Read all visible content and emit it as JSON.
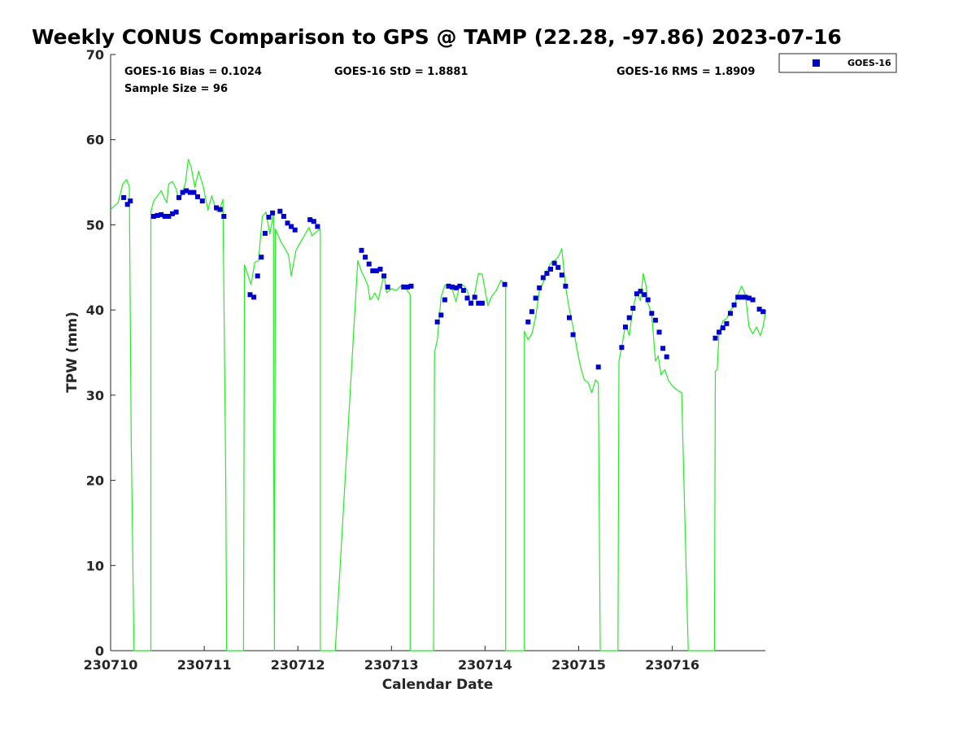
{
  "chart_data": {
    "type": "line",
    "title": "Weekly CONUS Comparison to GPS @ TAMP (22.28, -97.86) 2023-07-16",
    "xlabel": "Calendar Date",
    "ylabel": "TPW (mm)",
    "x_ticks": [
      "230710",
      "230711",
      "230712",
      "230713",
      "230714",
      "230715",
      "230716"
    ],
    "xlim_days": [
      0,
      7
    ],
    "ylim": [
      0,
      70
    ],
    "y_ticks": [
      0,
      10,
      20,
      30,
      40,
      50,
      60,
      70
    ],
    "grid": false,
    "legend_position": "top-right",
    "stats": {
      "bias": "GOES-16 Bias = 0.1024",
      "std": "GOES-16 StD = 1.8881",
      "rms": "GOES-16 RMS = 1.8909",
      "sample": "Sample Size = 96"
    },
    "colors": {
      "gps_line": "#22ee22",
      "goes": "#0000cc"
    },
    "series": [
      {
        "name": "GOES-16",
        "style": "square-markers",
        "x": [
          0.14,
          0.18,
          0.21,
          0.46,
          0.5,
          0.54,
          0.58,
          0.62,
          0.66,
          0.7,
          0.73,
          0.77,
          0.81,
          0.85,
          0.89,
          0.93,
          0.98,
          1.13,
          1.17,
          1.21,
          1.49,
          1.53,
          1.57,
          1.61,
          1.65,
          1.69,
          1.73,
          1.81,
          1.85,
          1.89,
          1.93,
          1.97,
          2.13,
          2.17,
          2.21,
          2.68,
          2.72,
          2.76,
          2.8,
          2.84,
          2.88,
          2.92,
          2.96,
          3.13,
          3.17,
          3.21,
          3.49,
          3.53,
          3.57,
          3.61,
          3.65,
          3.69,
          3.73,
          3.77,
          3.81,
          3.85,
          3.89,
          3.93,
          3.97,
          4.21,
          4.46,
          4.5,
          4.54,
          4.58,
          4.62,
          4.66,
          4.7,
          4.74,
          4.78,
          4.82,
          4.86,
          4.9,
          4.94,
          5.21,
          5.46,
          5.5,
          5.54,
          5.58,
          5.62,
          5.66,
          5.7,
          5.74,
          5.78,
          5.82,
          5.86,
          5.9,
          5.94,
          6.46,
          6.5,
          6.54,
          6.58,
          6.62,
          6.66,
          6.7,
          6.74,
          6.78,
          6.82,
          6.86,
          6.93,
          6.97
        ],
        "y": [
          53.2,
          52.4,
          52.8,
          51.0,
          51.1,
          51.2,
          51.0,
          51.0,
          51.3,
          51.5,
          53.2,
          53.8,
          54.0,
          53.8,
          53.8,
          53.3,
          52.8,
          52.0,
          51.8,
          51.0,
          41.8,
          41.5,
          44.0,
          46.2,
          49.0,
          50.9,
          51.4,
          51.6,
          51.0,
          50.2,
          49.8,
          49.4,
          50.6,
          50.4,
          49.8,
          47.0,
          46.2,
          45.4,
          44.6,
          44.6,
          44.8,
          44.0,
          42.7,
          42.7,
          42.7,
          42.8,
          38.6,
          39.4,
          41.2,
          42.8,
          42.7,
          42.6,
          42.8,
          42.3,
          41.4,
          40.8,
          41.5,
          40.8,
          40.8,
          43.0,
          38.6,
          39.8,
          41.4,
          42.6,
          43.8,
          44.3,
          44.8,
          45.5,
          45.0,
          44.1,
          42.8,
          39.1,
          37.1,
          33.3,
          35.6,
          38.0,
          39.1,
          40.2,
          41.9,
          42.2,
          41.8,
          41.2,
          39.6,
          38.8,
          37.4,
          35.5,
          34.5,
          36.7,
          37.4,
          37.9,
          38.4,
          39.6,
          40.6,
          41.5,
          41.5,
          41.5,
          41.4,
          41.2,
          40.1,
          39.8
        ]
      },
      {
        "style": "line",
        "x": [
          0.0,
          0.08,
          0.13,
          0.17,
          0.2,
          0.22,
          0.25,
          0.25,
          0.43,
          0.43,
          0.46,
          0.5,
          0.54,
          0.58,
          0.6,
          0.62,
          0.66,
          0.7,
          0.73,
          0.76,
          0.8,
          0.83,
          0.86,
          0.9,
          0.94,
          0.99,
          1.04,
          1.08,
          1.13,
          1.16,
          1.2,
          1.23,
          1.24,
          1.24,
          1.42,
          1.43,
          1.5,
          1.54,
          1.58,
          1.62,
          1.66,
          1.7,
          1.74,
          1.74,
          1.75,
          1.76,
          1.82,
          1.9,
          1.93,
          1.98,
          2.12,
          2.15,
          2.2,
          2.24,
          2.24,
          2.4,
          2.64,
          2.68,
          2.72,
          2.75,
          2.77,
          2.8,
          2.82,
          2.86,
          2.92,
          2.95,
          3.0,
          3.05,
          3.12,
          3.2,
          3.2,
          3.45,
          3.46,
          3.49,
          3.53,
          3.57,
          3.61,
          3.65,
          3.69,
          3.73,
          3.77,
          3.81,
          3.85,
          3.89,
          3.93,
          3.97,
          4.03,
          4.07,
          4.12,
          4.17,
          4.22,
          4.22,
          4.42,
          4.42,
          4.46,
          4.5,
          4.54,
          4.58,
          4.62,
          4.66,
          4.7,
          4.74,
          4.78,
          4.82,
          4.86,
          4.9,
          4.94,
          4.98,
          5.02,
          5.06,
          5.1,
          5.14,
          5.18,
          5.21,
          5.23,
          5.24,
          5.42,
          5.43,
          5.46,
          5.5,
          5.54,
          5.58,
          5.62,
          5.66,
          5.69,
          5.72,
          5.74,
          5.78,
          5.82,
          5.85,
          5.88,
          5.92,
          5.96,
          6.0,
          6.04,
          6.08,
          6.1,
          6.17,
          6.45,
          6.46,
          6.48,
          6.5,
          6.54,
          6.58,
          6.62,
          6.66,
          6.7,
          6.74,
          6.78,
          6.82,
          6.86,
          6.9,
          6.94,
          6.97,
          7.0
        ],
        "y": [
          51.8,
          52.6,
          54.8,
          55.3,
          54.5,
          25.0,
          0.0,
          0.0,
          0.0,
          51.5,
          52.8,
          53.4,
          54.0,
          53.0,
          52.6,
          54.8,
          55.1,
          54.2,
          52.9,
          53.5,
          55.0,
          57.7,
          56.8,
          54.4,
          56.3,
          54.5,
          51.7,
          53.4,
          51.6,
          51.6,
          53.0,
          20.0,
          0.0,
          0.0,
          0.0,
          45.3,
          43.0,
          45.6,
          45.8,
          51.0,
          51.5,
          48.9,
          51.4,
          30.0,
          0.0,
          49.5,
          48.0,
          46.5,
          44.0,
          47.0,
          49.7,
          48.7,
          49.2,
          49.5,
          0.0,
          0.0,
          45.8,
          44.5,
          43.6,
          42.8,
          41.2,
          41.5,
          42.0,
          41.2,
          44.2,
          42.0,
          42.5,
          42.3,
          43.0,
          41.8,
          0.0,
          0.0,
          35.0,
          36.5,
          41.5,
          42.9,
          43.0,
          42.4,
          41.0,
          43.0,
          42.9,
          42.3,
          40.6,
          42.0,
          44.3,
          44.2,
          40.5,
          41.6,
          42.3,
          43.5,
          42.7,
          0.0,
          0.0,
          37.5,
          36.5,
          37.2,
          39.2,
          42.2,
          43.2,
          44.6,
          45.5,
          45.8,
          46.2,
          47.2,
          42.7,
          40.1,
          38.0,
          35.5,
          33.3,
          31.8,
          31.5,
          30.3,
          31.8,
          31.4,
          0.0,
          0.0,
          0.0,
          34.0,
          35.6,
          38.3,
          37.0,
          40.2,
          42.0,
          41.1,
          44.3,
          42.8,
          40.8,
          39.5,
          34.0,
          34.6,
          32.4,
          33.0,
          31.7,
          31.1,
          30.7,
          30.4,
          30.3,
          0.0,
          0.0,
          32.8,
          33.0,
          37.4,
          38.7,
          39.0,
          40.0,
          40.4,
          41.8,
          42.8,
          41.8,
          38.0,
          37.2,
          38.0,
          37.0,
          38.0,
          40.0
        ]
      }
    ]
  },
  "legend": {
    "label": "GOES-16"
  }
}
